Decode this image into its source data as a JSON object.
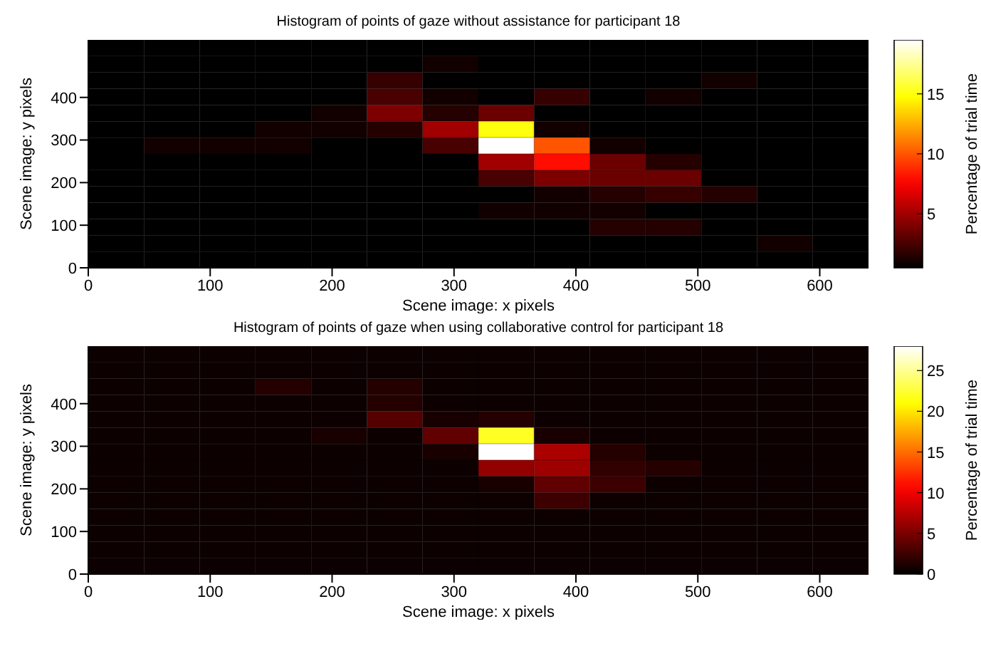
{
  "chart_data": [
    {
      "type": "heatmap",
      "title": "Histogram of points of gaze without assistance for participant 18",
      "xlabel": "Scene image: x pixels",
      "ylabel": "Scene image: y pixels",
      "clabel": "Percentage of trial time",
      "xlim": [
        0,
        640
      ],
      "ylim": [
        0,
        535
      ],
      "xticks": [
        0,
        100,
        200,
        300,
        400,
        500,
        600
      ],
      "yticks": [
        0,
        100,
        200,
        300,
        400
      ],
      "clim": [
        0.5,
        19.5
      ],
      "cticks": [
        5,
        10,
        15
      ],
      "cells": [
        [
          0.5,
          0.5,
          0.5,
          0.5,
          0.5,
          0.5,
          0.5,
          0.5,
          0.5,
          0.5,
          0.5,
          0.5,
          0.5,
          0.5
        ],
        [
          0.5,
          0.5,
          0.5,
          0.5,
          0.5,
          0.5,
          1,
          0.5,
          0.5,
          0.5,
          0.5,
          0.5,
          0.5,
          0.5
        ],
        [
          0.5,
          0.5,
          0.5,
          0.5,
          0.5,
          2,
          0.5,
          0.5,
          0.5,
          0.5,
          0.5,
          1,
          0.5,
          0.5
        ],
        [
          0.5,
          0.5,
          0.5,
          0.5,
          0.5,
          2.5,
          1,
          0.5,
          2,
          0.5,
          1,
          0.5,
          0.5,
          0.5
        ],
        [
          0.5,
          0.5,
          0.5,
          0.5,
          1,
          4,
          1.5,
          3.5,
          0.5,
          0.5,
          0.5,
          0.5,
          0.5,
          0.5
        ],
        [
          0.5,
          0.5,
          0.5,
          1,
          1,
          1.5,
          5,
          15,
          1,
          0.5,
          0.5,
          0.5,
          0.5,
          0.5
        ],
        [
          0.5,
          1,
          1,
          1,
          0.5,
          0.5,
          2.5,
          19.5,
          10,
          1,
          0.5,
          0.5,
          0.5,
          0.5
        ],
        [
          0.5,
          0.5,
          0.5,
          0.5,
          0.5,
          0.5,
          0.5,
          5,
          8,
          3.5,
          1.5,
          0.5,
          0.5,
          0.5
        ],
        [
          0.5,
          0.5,
          0.5,
          0.5,
          0.5,
          0.5,
          0.5,
          2.5,
          4,
          3.5,
          3.5,
          0.5,
          0.5,
          0.5
        ],
        [
          0.5,
          0.5,
          0.5,
          0.5,
          0.5,
          0.5,
          0.5,
          0.5,
          1,
          1.5,
          2,
          1.5,
          0.5,
          0.5
        ],
        [
          0.5,
          0.5,
          0.5,
          0.5,
          0.5,
          0.5,
          0.5,
          1,
          1,
          1,
          0.5,
          0.5,
          0.5,
          0.5
        ],
        [
          0.5,
          0.5,
          0.5,
          0.5,
          0.5,
          0.5,
          0.5,
          0.5,
          0.5,
          1.5,
          1.5,
          0.5,
          0.5,
          0.5
        ],
        [
          0.5,
          0.5,
          0.5,
          0.5,
          0.5,
          0.5,
          0.5,
          0.5,
          0.5,
          0.5,
          0.5,
          0.5,
          1,
          0.5
        ],
        [
          0.5,
          0.5,
          0.5,
          0.5,
          0.5,
          0.5,
          0.5,
          0.5,
          0.5,
          0.5,
          0.5,
          0.5,
          0.5,
          0.5
        ]
      ]
    },
    {
      "type": "heatmap",
      "title": "Histogram of points of gaze when using collaborative control for participant 18",
      "xlabel": "Scene image: x pixels",
      "ylabel": "Scene image: y pixels",
      "clabel": "Percentage of trial time",
      "xlim": [
        0,
        640
      ],
      "ylim": [
        0,
        535
      ],
      "xticks": [
        0,
        100,
        200,
        300,
        400,
        500,
        600
      ],
      "yticks": [
        0,
        100,
        200,
        300,
        400
      ],
      "clim": [
        0,
        28
      ],
      "cticks": [
        0,
        5,
        10,
        15,
        20,
        25
      ],
      "cells": [
        [
          0.5,
          0.5,
          0.5,
          0.5,
          0.5,
          0.5,
          0.5,
          0.5,
          0.5,
          0.5,
          0.5,
          0.5,
          0.5,
          0.5
        ],
        [
          0.5,
          0.5,
          0.5,
          0.5,
          0.5,
          0.5,
          0.5,
          0.5,
          0.5,
          0.5,
          0.5,
          0.5,
          0.5,
          0.5
        ],
        [
          0.5,
          0.5,
          0.5,
          1.5,
          0.5,
          1.5,
          0.5,
          0.5,
          0.5,
          0.5,
          0.5,
          0.5,
          0.5,
          0.5
        ],
        [
          0.5,
          0.5,
          0.5,
          0.5,
          0.5,
          1.5,
          0.5,
          0.5,
          0.5,
          0.5,
          0.5,
          0.5,
          0.5,
          0.5
        ],
        [
          0.5,
          0.5,
          0.5,
          0.5,
          0.5,
          3.5,
          1,
          1.5,
          0.5,
          0.5,
          0.5,
          0.5,
          0.5,
          0.5
        ],
        [
          0.5,
          0.5,
          0.5,
          0.5,
          1,
          0.5,
          4,
          22,
          1,
          0.5,
          0.5,
          0.5,
          0.5,
          0.5
        ],
        [
          0.5,
          0.5,
          0.5,
          0.5,
          0.5,
          0.5,
          1,
          28,
          7,
          1.5,
          0.5,
          0.5,
          0.5,
          0.5
        ],
        [
          0.5,
          0.5,
          0.5,
          0.5,
          0.5,
          0.5,
          0.5,
          6,
          6.5,
          2,
          1.5,
          0.5,
          0.5,
          0.5
        ],
        [
          0.5,
          0.5,
          0.5,
          0.5,
          0.5,
          0.5,
          0.5,
          1,
          4,
          2.5,
          0.5,
          0.5,
          0.5,
          0.5
        ],
        [
          0.5,
          0.5,
          0.5,
          0.5,
          0.5,
          0.5,
          0.5,
          0.5,
          2.5,
          0.5,
          0.5,
          0.5,
          0.5,
          0.5
        ],
        [
          0.5,
          0.5,
          0.5,
          0.5,
          0.5,
          0.5,
          0.5,
          0.5,
          0.5,
          0.5,
          0.5,
          0.5,
          0.5,
          0.5
        ],
        [
          0.5,
          0.5,
          0.5,
          0.5,
          0.5,
          0.5,
          0.5,
          0.5,
          0.5,
          0.5,
          0.5,
          0.5,
          0.5,
          0.5
        ],
        [
          0.5,
          0.5,
          0.5,
          0.5,
          0.5,
          0.5,
          0.5,
          0.5,
          0.5,
          0.5,
          0.5,
          0.5,
          0.5,
          0.5
        ],
        [
          0.5,
          0.5,
          0.5,
          0.5,
          0.5,
          0.5,
          0.5,
          0.5,
          0.5,
          0.5,
          0.5,
          0.5,
          0.5,
          0.5
        ]
      ]
    }
  ]
}
